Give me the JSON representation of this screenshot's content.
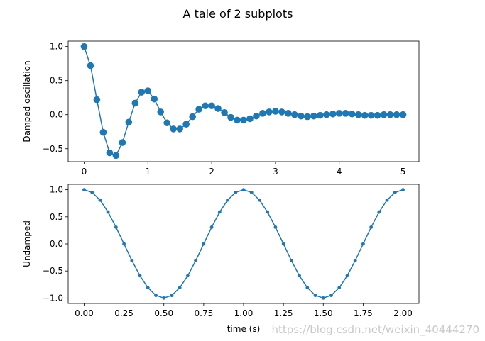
{
  "figure": {
    "title": "A tale of 2 subplots",
    "watermark": "https://blog.csdn.net/weixin_40444270"
  },
  "chart_data": [
    {
      "type": "line",
      "title": "",
      "xlabel": "",
      "ylabel": "Damped oscillation",
      "xlim": [
        -0.25,
        5.25
      ],
      "ylim": [
        -0.69,
        1.08
      ],
      "xticks": [
        "0",
        "1",
        "2",
        "3",
        "4",
        "5"
      ],
      "yticks": [
        "1.0",
        "0.5",
        "0.0",
        "−0.5"
      ],
      "xtick_values": [
        0,
        1,
        2,
        3,
        4,
        5
      ],
      "ytick_values": [
        1.0,
        0.5,
        0.0,
        -0.5
      ],
      "marker": "circle",
      "color": "#1f77b4",
      "grid": false,
      "series": [
        {
          "x": [
            0.0,
            0.1,
            0.2,
            0.3,
            0.4,
            0.5,
            0.6,
            0.7,
            0.8,
            0.9,
            1.0,
            1.1,
            1.2,
            1.3,
            1.4,
            1.5,
            1.6,
            1.7,
            1.8,
            1.9,
            2.0,
            2.1,
            2.2,
            2.3,
            2.4,
            2.5,
            2.6,
            2.7,
            2.8,
            2.9,
            3.0,
            3.1,
            3.2,
            3.3,
            3.4,
            3.5,
            3.6,
            3.7,
            3.8,
            3.9,
            4.0,
            4.1,
            4.2,
            4.3,
            4.4,
            4.5,
            4.6,
            4.7,
            4.8,
            4.9,
            5.0
          ],
          "y": [
            1.0,
            0.72,
            0.22,
            -0.26,
            -0.56,
            -0.6,
            -0.41,
            -0.11,
            0.17,
            0.33,
            0.35,
            0.23,
            0.04,
            -0.12,
            -0.21,
            -0.21,
            -0.14,
            -0.03,
            0.08,
            0.13,
            0.13,
            0.09,
            0.03,
            -0.04,
            -0.08,
            -0.08,
            -0.06,
            -0.02,
            0.02,
            0.04,
            0.05,
            0.04,
            0.02,
            0.0,
            -0.02,
            -0.03,
            -0.02,
            -0.01,
            0.0,
            0.01,
            0.02,
            0.02,
            0.01,
            0.0,
            -0.01,
            -0.01,
            -0.01,
            0.0,
            0.0,
            0.0,
            0.0
          ]
        }
      ]
    },
    {
      "type": "line",
      "title": "",
      "xlabel": "time (s)",
      "ylabel": "Undamped",
      "xlim": [
        -0.1,
        2.1
      ],
      "ylim": [
        -1.1,
        1.1
      ],
      "xticks": [
        "0.00",
        "0.25",
        "0.50",
        "0.75",
        "1.00",
        "1.25",
        "1.50",
        "1.75",
        "2.00"
      ],
      "yticks": [
        "1.0",
        "0.5",
        "0.0",
        "−0.5",
        "−1.0"
      ],
      "xtick_values": [
        0,
        0.25,
        0.5,
        0.75,
        1.0,
        1.25,
        1.5,
        1.75,
        2.0
      ],
      "ytick_values": [
        1.0,
        0.5,
        0.0,
        -0.5,
        -1.0
      ],
      "marker": "small-dot",
      "color": "#1f77b4",
      "grid": false,
      "series": [
        {
          "function": "cos(2*pi*t)",
          "x_start": 0.0,
          "x_end": 2.0,
          "x_step": 0.05
        }
      ]
    }
  ]
}
